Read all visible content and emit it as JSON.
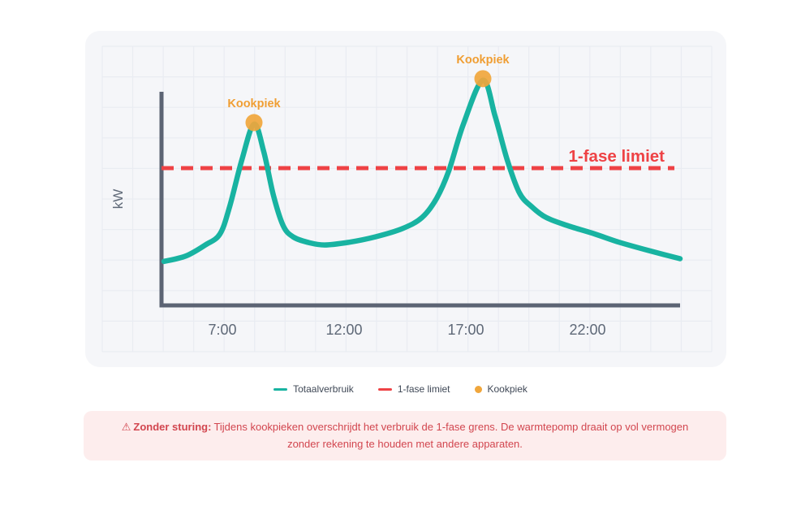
{
  "chart_data": {
    "type": "line",
    "title": "",
    "xlabel": "",
    "ylabel": "kW",
    "x_tick_labels": [
      "7:00",
      "12:00",
      "17:00",
      "22:00"
    ],
    "x_tick_hours": [
      7,
      12,
      17,
      22
    ],
    "x_range_hours": [
      4.5,
      25.8
    ],
    "y_range_kw": [
      0,
      9.4
    ],
    "grid": true,
    "legend_position": "bottom-center",
    "series": [
      {
        "name": "Totaalverbruik",
        "type": "line",
        "color": "#18b3a1",
        "points_hour_kw": [
          [
            4.6,
            1.6
          ],
          [
            5.5,
            1.8
          ],
          [
            6.3,
            2.2
          ],
          [
            6.9,
            2.6
          ],
          [
            7.3,
            3.6
          ],
          [
            7.8,
            5.3
          ],
          [
            8.3,
            6.6
          ],
          [
            8.7,
            5.6
          ],
          [
            9.1,
            4.0
          ],
          [
            9.5,
            2.9
          ],
          [
            9.9,
            2.5
          ],
          [
            10.5,
            2.3
          ],
          [
            11.2,
            2.2
          ],
          [
            12.2,
            2.3
          ],
          [
            13.3,
            2.5
          ],
          [
            14.4,
            2.8
          ],
          [
            15.2,
            3.2
          ],
          [
            15.8,
            3.9
          ],
          [
            16.3,
            4.9
          ],
          [
            16.9,
            6.6
          ],
          [
            17.7,
            8.2
          ],
          [
            18.2,
            6.9
          ],
          [
            18.7,
            5.3
          ],
          [
            19.2,
            4.1
          ],
          [
            19.7,
            3.6
          ],
          [
            20.3,
            3.2
          ],
          [
            21.2,
            2.9
          ],
          [
            22.3,
            2.6
          ],
          [
            23.3,
            2.3
          ],
          [
            24.5,
            2.0
          ],
          [
            25.8,
            1.7
          ]
        ]
      },
      {
        "name": "1-fase limiet",
        "type": "horizontal-limit-line",
        "style": "dashed",
        "color": "#ee4245",
        "kw": 5.0
      },
      {
        "name": "Kookpiek",
        "type": "point-markers",
        "color": "#f0a63c",
        "points_hour_kw": [
          [
            8.3,
            6.6
          ],
          [
            17.7,
            8.2
          ]
        ]
      }
    ],
    "annotations": {
      "peak_label": "Kookpiek",
      "peak_label_color": "#f09e33",
      "limit_label": "1-fase limiet",
      "limit_label_color": "#ee4245"
    }
  },
  "legend": {
    "items": [
      {
        "label": "Totaalverbruik",
        "marker": "line",
        "color": "#18b3a1"
      },
      {
        "label": "1-fase limiet",
        "marker": "line",
        "color": "#ee4245"
      },
      {
        "label": "Kookpiek",
        "marker": "dot",
        "color": "#f0a63c"
      }
    ]
  },
  "warning": {
    "icon_glyph": "⚠",
    "title": "Zonder sturing:",
    "text": "Tijdens kookpieken overschrijdt het verbruik de 1-fase grens. De warmtepomp draait op vol vermogen zonder rekening te houden met andere apparaten."
  },
  "colors": {
    "card_bg": "#f5f6f9",
    "grid_line": "#e9ecf2",
    "axis": "#5c6474",
    "tick_text": "#5e6877",
    "teal": "#18b3a1",
    "red": "#ee4245",
    "orange": "#f0a63c",
    "warning_bg": "#fdeded",
    "warning_text": "#d2464f"
  }
}
